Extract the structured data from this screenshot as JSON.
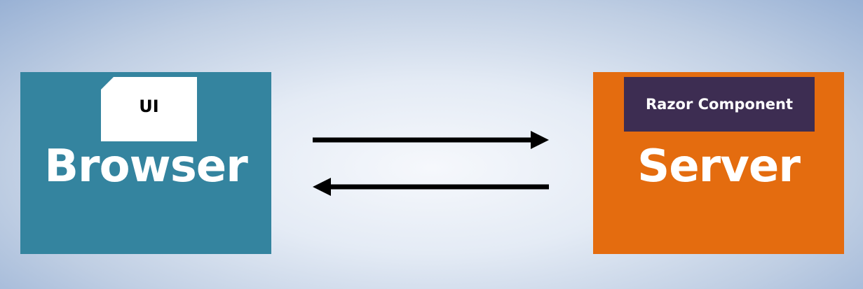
{
  "colors": {
    "browser_box": "#34849F",
    "server_box": "#E46C0F",
    "component_bar": "#3D2D52",
    "arrow": "#000000"
  },
  "browser": {
    "label": "Browser",
    "ui_card": "UI"
  },
  "server": {
    "label": "Server",
    "component": "Razor Component"
  },
  "arrows": [
    {
      "direction": "right",
      "meaning": "browser-to-server"
    },
    {
      "direction": "left",
      "meaning": "server-to-browser"
    }
  ]
}
